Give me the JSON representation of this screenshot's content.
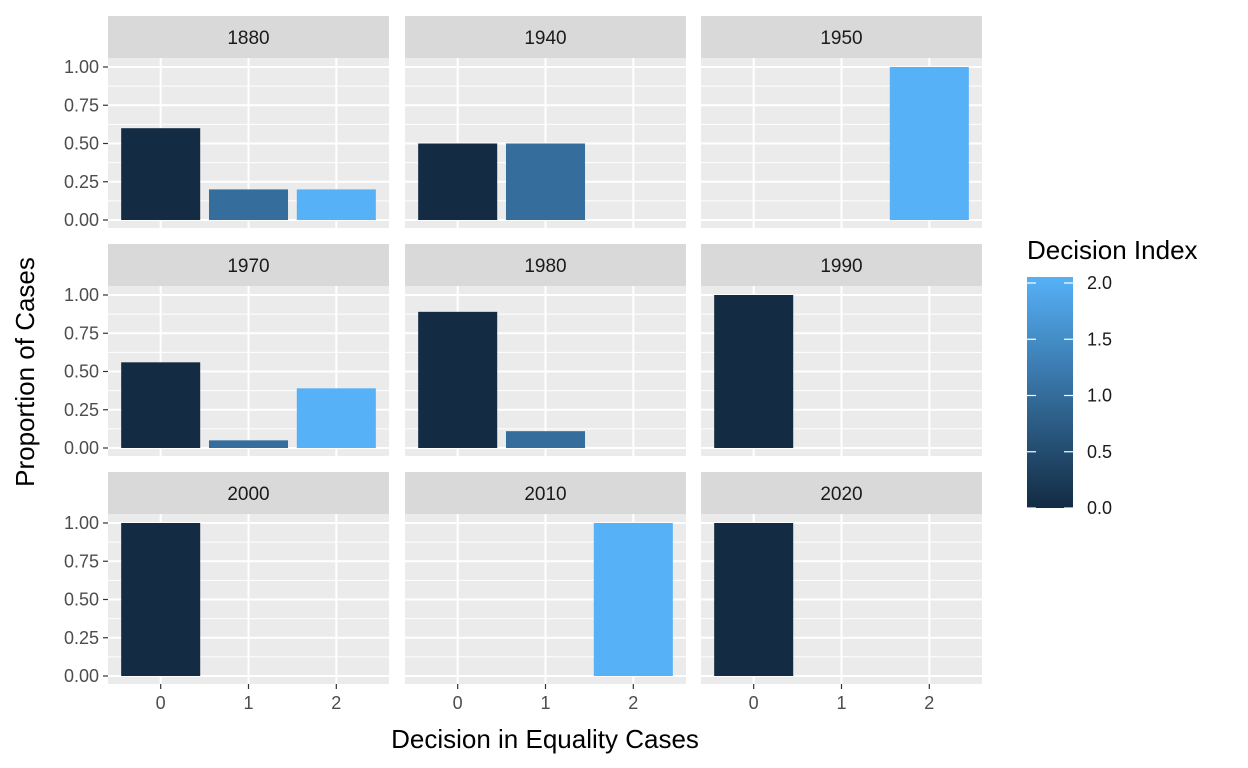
{
  "chart_data": {
    "type": "bar",
    "layout": "facet_wrap",
    "xlabel": "Decision in Equality Cases",
    "ylabel": "Proportion of Cases",
    "categories": [
      "0",
      "1",
      "2"
    ],
    "ylim": [
      0,
      1
    ],
    "yticks": [
      "0.00",
      "0.25",
      "0.50",
      "0.75",
      "1.00"
    ],
    "yticks_values": [
      0,
      0.25,
      0.5,
      0.75,
      1.0
    ],
    "legend": {
      "title": "Decision Index",
      "labels": [
        "2.0",
        "1.5",
        "1.0",
        "0.5",
        "0.0"
      ],
      "values": [
        2.0,
        1.5,
        1.0,
        0.5,
        0.0
      ],
      "placement": "right",
      "low_color": "#132B43",
      "high_color": "#56B1F7"
    },
    "panels": [
      {
        "label": "1880",
        "bars": [
          {
            "x": "0",
            "value": 0.6
          },
          {
            "x": "1",
            "value": 0.2
          },
          {
            "x": "2",
            "value": 0.2
          }
        ]
      },
      {
        "label": "1940",
        "bars": [
          {
            "x": "0",
            "value": 0.5
          },
          {
            "x": "1",
            "value": 0.5
          }
        ]
      },
      {
        "label": "1950",
        "bars": [
          {
            "x": "2",
            "value": 1.0
          }
        ]
      },
      {
        "label": "1970",
        "bars": [
          {
            "x": "0",
            "value": 0.56
          },
          {
            "x": "1",
            "value": 0.05
          },
          {
            "x": "2",
            "value": 0.39
          }
        ]
      },
      {
        "label": "1980",
        "bars": [
          {
            "x": "0",
            "value": 0.89
          },
          {
            "x": "1",
            "value": 0.11
          }
        ]
      },
      {
        "label": "1990",
        "bars": [
          {
            "x": "0",
            "value": 1.0
          }
        ]
      },
      {
        "label": "2000",
        "bars": [
          {
            "x": "0",
            "value": 1.0
          }
        ]
      },
      {
        "label": "2010",
        "bars": [
          {
            "x": "2",
            "value": 1.0
          }
        ]
      },
      {
        "label": "2020",
        "bars": [
          {
            "x": "0",
            "value": 1.0
          }
        ]
      }
    ],
    "colors": {
      "panel_bg": "#EBEBEB",
      "strip_bg": "#D9D9D9",
      "grid": "#FFFFFF",
      "tick": "#333333"
    }
  }
}
